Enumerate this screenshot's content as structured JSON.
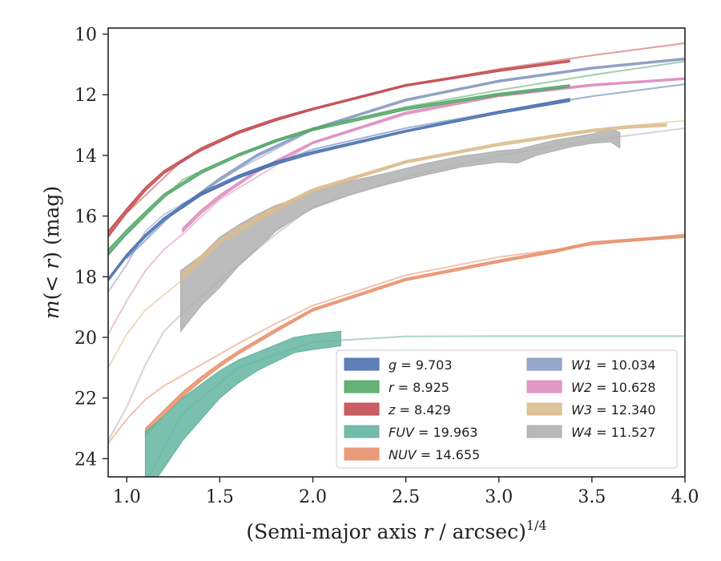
{
  "chart_data": {
    "type": "line",
    "xlabel": "(Semi-major axis r / arcsec)",
    "xlabel_parts": {
      "pre": "(Semi-major axis ",
      "var": "r",
      "post": " / arcsec)",
      "sup": "1/4"
    },
    "ylabel_parts": {
      "pre": "m(< ",
      "var": "r",
      "post": ") (mag)"
    },
    "xlim": [
      0.9,
      4.0
    ],
    "ylim": [
      24.6,
      9.8
    ],
    "y_inverted": true,
    "xticks": [
      {
        "v": 1.0,
        "label": "1.0"
      },
      {
        "v": 1.5,
        "label": "1.5"
      },
      {
        "v": 2.0,
        "label": "2.0"
      },
      {
        "v": 2.5,
        "label": "2.5"
      },
      {
        "v": 3.0,
        "label": "3.0"
      },
      {
        "v": 3.5,
        "label": "3.5"
      },
      {
        "v": 4.0,
        "label": "4.0"
      }
    ],
    "yticks": [
      {
        "v": 10,
        "label": "10"
      },
      {
        "v": 12,
        "label": "12"
      },
      {
        "v": 14,
        "label": "14"
      },
      {
        "v": 16,
        "label": "16"
      },
      {
        "v": 18,
        "label": "18"
      },
      {
        "v": 20,
        "label": "20"
      },
      {
        "v": 22,
        "label": "22"
      },
      {
        "v": 24,
        "label": "24"
      }
    ],
    "legend_position": "lower-right",
    "series": [
      {
        "name": "g",
        "label": "g = 9.703",
        "color": "#4c72b0",
        "band": [
          [
            0.9,
            18.05,
            18.15
          ],
          [
            1.0,
            17.25,
            17.35
          ],
          [
            1.1,
            16.6,
            16.7
          ],
          [
            1.2,
            16.05,
            16.15
          ],
          [
            1.4,
            15.22,
            15.32
          ],
          [
            1.6,
            14.65,
            14.75
          ],
          [
            1.8,
            14.2,
            14.3
          ],
          [
            2.0,
            13.87,
            13.95
          ],
          [
            2.5,
            13.17,
            13.23
          ],
          [
            3.0,
            12.54,
            12.62
          ],
          [
            3.38,
            12.12,
            12.22
          ]
        ],
        "model": [
          [
            1.0,
            17.4
          ],
          [
            1.3,
            15.6
          ],
          [
            1.6,
            14.7
          ],
          [
            2.0,
            13.8
          ],
          [
            2.5,
            13.1
          ],
          [
            3.0,
            12.55
          ],
          [
            3.5,
            12.05
          ],
          [
            4.0,
            11.65
          ]
        ]
      },
      {
        "name": "r",
        "label": "r = 8.925",
        "color": "#55a868",
        "band": [
          [
            0.9,
            17.1,
            17.3
          ],
          [
            1.0,
            16.45,
            16.6
          ],
          [
            1.1,
            15.85,
            15.97
          ],
          [
            1.2,
            15.27,
            15.37
          ],
          [
            1.4,
            14.5,
            14.6
          ],
          [
            1.6,
            13.95,
            14.03
          ],
          [
            1.8,
            13.48,
            13.56
          ],
          [
            2.0,
            13.1,
            13.18
          ],
          [
            2.5,
            12.42,
            12.5
          ],
          [
            3.0,
            11.95,
            12.03
          ],
          [
            3.38,
            11.67,
            11.75
          ]
        ],
        "model": [
          [
            1.0,
            16.6
          ],
          [
            1.3,
            14.8
          ],
          [
            1.6,
            13.95
          ],
          [
            2.0,
            13.1
          ],
          [
            2.5,
            12.4
          ],
          [
            3.0,
            11.85
          ],
          [
            3.5,
            11.35
          ],
          [
            4.0,
            10.9
          ]
        ]
      },
      {
        "name": "z",
        "label": "z = 8.429",
        "color": "#c44e52",
        "band": [
          [
            0.9,
            16.5,
            16.7
          ],
          [
            1.0,
            15.75,
            15.9
          ],
          [
            1.1,
            15.05,
            15.17
          ],
          [
            1.2,
            14.5,
            14.6
          ],
          [
            1.4,
            13.75,
            13.83
          ],
          [
            1.6,
            13.2,
            13.28
          ],
          [
            1.8,
            12.78,
            12.86
          ],
          [
            2.0,
            12.44,
            12.5
          ],
          [
            2.5,
            11.66,
            11.72
          ],
          [
            3.0,
            11.17,
            11.23
          ],
          [
            3.38,
            10.86,
            10.92
          ]
        ],
        "model": [
          [
            1.0,
            15.9
          ],
          [
            1.3,
            14.15
          ],
          [
            1.6,
            13.25
          ],
          [
            2.0,
            12.45
          ],
          [
            2.5,
            11.7
          ],
          [
            3.0,
            11.15
          ],
          [
            3.5,
            10.7
          ],
          [
            4.0,
            10.3
          ]
        ]
      },
      {
        "name": "FUV",
        "label": "FUV = 19.963",
        "color": "#64b5a0",
        "band": [
          [
            1.1,
            23.1,
            25.2
          ],
          [
            1.2,
            22.6,
            24.3
          ],
          [
            1.3,
            22.0,
            23.4
          ],
          [
            1.4,
            21.55,
            22.7
          ],
          [
            1.5,
            21.1,
            22.0
          ],
          [
            1.6,
            20.75,
            21.5
          ],
          [
            1.7,
            20.5,
            21.1
          ],
          [
            1.8,
            20.25,
            20.8
          ],
          [
            1.9,
            20.0,
            20.5
          ],
          [
            2.0,
            19.9,
            20.4
          ],
          [
            2.15,
            19.8,
            20.28
          ]
        ],
        "model": [
          [
            1.1,
            24.8
          ],
          [
            1.3,
            22.5
          ],
          [
            1.6,
            21.0
          ],
          [
            2.0,
            20.15
          ],
          [
            2.5,
            19.97
          ],
          [
            3.0,
            19.96
          ],
          [
            4.0,
            19.96
          ]
        ]
      },
      {
        "name": "NUV",
        "label": "NUV = 14.655",
        "color": "#e8916b",
        "band": [
          [
            1.1,
            23.0,
            23.25
          ],
          [
            1.2,
            22.4,
            22.6
          ],
          [
            1.3,
            21.8,
            21.96
          ],
          [
            1.4,
            21.3,
            21.44
          ],
          [
            1.5,
            20.85,
            20.97
          ],
          [
            1.6,
            20.45,
            20.55
          ],
          [
            1.8,
            19.73,
            19.83
          ],
          [
            2.0,
            19.05,
            19.13
          ],
          [
            2.5,
            18.05,
            18.13
          ],
          [
            3.0,
            17.45,
            17.53
          ],
          [
            3.3,
            17.12,
            17.2
          ],
          [
            3.4,
            16.98,
            17.06
          ],
          [
            3.5,
            16.85,
            16.93
          ],
          [
            4.0,
            16.62,
            16.7
          ]
        ],
        "model": [
          [
            0.9,
            23.5
          ],
          [
            1.0,
            22.7
          ],
          [
            1.1,
            22.05
          ],
          [
            1.2,
            21.6
          ],
          [
            1.4,
            20.9
          ],
          [
            1.6,
            20.2
          ],
          [
            1.8,
            19.55
          ],
          [
            2.0,
            18.95
          ],
          [
            2.5,
            17.95
          ],
          [
            3.0,
            17.35
          ],
          [
            3.5,
            16.95
          ],
          [
            4.0,
            16.6
          ]
        ]
      },
      {
        "name": "W1",
        "label": "W1 = 10.034",
        "color": "#8c9dc4",
        "band": [
          [
            1.3,
            15.64,
            15.74
          ],
          [
            1.5,
            14.74,
            14.82
          ],
          [
            1.7,
            13.96,
            14.04
          ],
          [
            2.0,
            13.1,
            13.16
          ],
          [
            2.5,
            12.14,
            12.2
          ],
          [
            3.0,
            11.52,
            11.58
          ],
          [
            3.5,
            11.09,
            11.15
          ],
          [
            4.0,
            10.79,
            10.85
          ]
        ],
        "model": [
          [
            0.9,
            18.5
          ],
          [
            1.0,
            17.6
          ],
          [
            1.1,
            16.5
          ],
          [
            1.2,
            15.95
          ],
          [
            1.3,
            15.6
          ],
          [
            1.6,
            14.45
          ],
          [
            2.0,
            13.15
          ],
          [
            2.5,
            12.2
          ],
          [
            3.0,
            11.55
          ],
          [
            3.5,
            11.1
          ],
          [
            4.0,
            10.8
          ]
        ]
      },
      {
        "name": "W2",
        "label": "W2 = 10.628",
        "color": "#dd8fbf",
        "band": [
          [
            1.3,
            16.4,
            16.52
          ],
          [
            1.4,
            15.8,
            15.92
          ],
          [
            1.5,
            15.3,
            15.4
          ],
          [
            1.7,
            14.48,
            14.56
          ],
          [
            2.0,
            13.55,
            13.61
          ],
          [
            2.5,
            12.57,
            12.63
          ],
          [
            3.0,
            12.0,
            12.06
          ],
          [
            3.5,
            11.65,
            11.71
          ],
          [
            4.0,
            11.44,
            11.5
          ]
        ],
        "model": [
          [
            0.9,
            19.9
          ],
          [
            1.0,
            18.8
          ],
          [
            1.1,
            17.8
          ],
          [
            1.2,
            17.1
          ],
          [
            1.3,
            16.6
          ],
          [
            1.5,
            15.45
          ],
          [
            2.0,
            13.6
          ],
          [
            2.5,
            12.65
          ],
          [
            3.0,
            12.05
          ],
          [
            3.5,
            11.7
          ],
          [
            4.0,
            11.45
          ]
        ]
      },
      {
        "name": "W3",
        "label": "W3 = 12.340",
        "color": "#dbbd8f",
        "band": [
          [
            1.3,
            17.85,
            18.05
          ],
          [
            1.4,
            17.3,
            17.46
          ],
          [
            1.5,
            16.77,
            16.91
          ],
          [
            1.7,
            16.0,
            16.12
          ],
          [
            2.0,
            15.1,
            15.2
          ],
          [
            2.5,
            14.17,
            14.25
          ],
          [
            3.0,
            13.6,
            13.68
          ],
          [
            3.5,
            13.14,
            13.22
          ],
          [
            3.7,
            13.02,
            13.1
          ],
          [
            3.9,
            12.96,
            13.04
          ]
        ],
        "model": [
          [
            0.9,
            21.0
          ],
          [
            1.0,
            19.9
          ],
          [
            1.1,
            19.1
          ],
          [
            1.2,
            18.6
          ],
          [
            1.3,
            18.1
          ],
          [
            1.5,
            16.9
          ],
          [
            2.0,
            15.15
          ],
          [
            2.5,
            14.2
          ],
          [
            3.0,
            13.6
          ],
          [
            3.5,
            13.15
          ],
          [
            4.0,
            12.85
          ]
        ]
      },
      {
        "name": "W4",
        "label": "W4 = 11.527",
        "color": "#b0b0b0",
        "band": [
          [
            1.29,
            17.8,
            19.8
          ],
          [
            1.4,
            17.3,
            18.95
          ],
          [
            1.5,
            16.7,
            18.35
          ],
          [
            1.6,
            16.3,
            17.65
          ],
          [
            1.7,
            15.95,
            17.1
          ],
          [
            1.8,
            15.65,
            16.5
          ],
          [
            1.9,
            15.45,
            16.1
          ],
          [
            2.0,
            15.18,
            15.75
          ],
          [
            2.2,
            14.85,
            15.3
          ],
          [
            2.4,
            14.58,
            14.95
          ],
          [
            2.6,
            14.28,
            14.65
          ],
          [
            2.8,
            14.02,
            14.38
          ],
          [
            2.9,
            13.95,
            14.3
          ],
          [
            3.0,
            13.85,
            14.22
          ],
          [
            3.1,
            13.8,
            14.25
          ],
          [
            3.2,
            13.65,
            14.0
          ],
          [
            3.3,
            13.5,
            13.85
          ],
          [
            3.4,
            13.4,
            13.7
          ],
          [
            3.5,
            13.3,
            13.6
          ],
          [
            3.6,
            13.1,
            13.55
          ],
          [
            3.65,
            13.25,
            13.75
          ]
        ],
        "model": [
          [
            0.9,
            23.4
          ],
          [
            1.0,
            22.3
          ],
          [
            1.1,
            20.9
          ],
          [
            1.2,
            19.8
          ],
          [
            1.3,
            19.2
          ],
          [
            1.5,
            18.1
          ],
          [
            1.8,
            16.6
          ],
          [
            2.0,
            15.7
          ],
          [
            2.5,
            14.7
          ],
          [
            3.0,
            14.0
          ],
          [
            3.5,
            13.5
          ],
          [
            4.0,
            13.1
          ]
        ]
      }
    ]
  }
}
